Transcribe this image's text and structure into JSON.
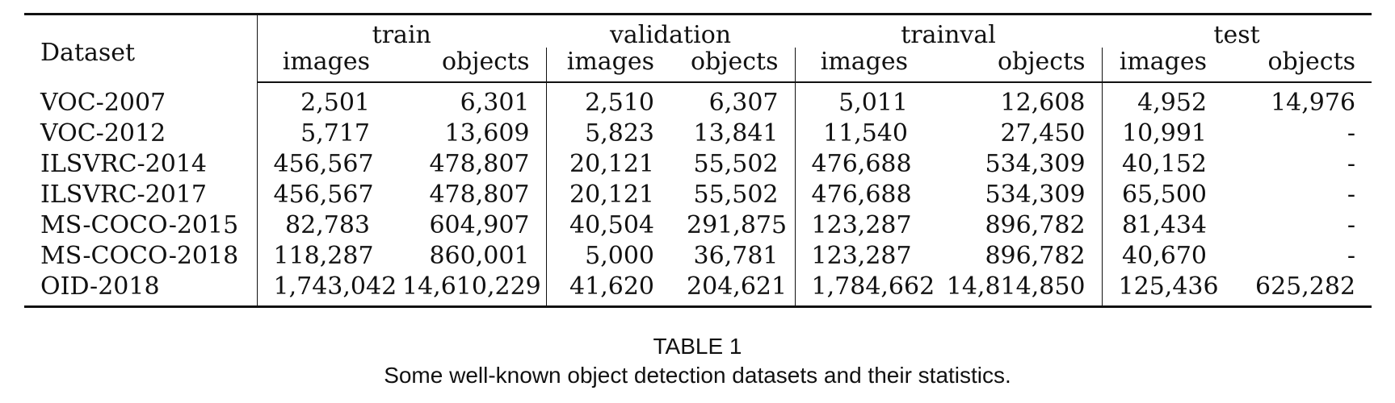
{
  "table": {
    "dataset_header": "Dataset",
    "groups": [
      "train",
      "validation",
      "trainval",
      "test"
    ],
    "subheaders": [
      "images",
      "objects",
      "images",
      "objects",
      "images",
      "objects",
      "images",
      "objects"
    ],
    "rows": [
      {
        "name": "VOC-2007",
        "cells": [
          "2,501",
          "6,301",
          "2,510",
          "6,307",
          "5,011",
          "12,608",
          "4,952",
          "14,976"
        ]
      },
      {
        "name": "VOC-2012",
        "cells": [
          "5,717",
          "13,609",
          "5,823",
          "13,841",
          "11,540",
          "27,450",
          "10,991",
          "-"
        ]
      },
      {
        "name": "ILSVRC-2014",
        "cells": [
          "456,567",
          "478,807",
          "20,121",
          "55,502",
          "476,688",
          "534,309",
          "40,152",
          "-"
        ]
      },
      {
        "name": "ILSVRC-2017",
        "cells": [
          "456,567",
          "478,807",
          "20,121",
          "55,502",
          "476,688",
          "534,309",
          "65,500",
          "-"
        ]
      },
      {
        "name": "MS-COCO-2015",
        "cells": [
          "82,783",
          "604,907",
          "40,504",
          "291,875",
          "123,287",
          "896,782",
          "81,434",
          "-"
        ]
      },
      {
        "name": "MS-COCO-2018",
        "cells": [
          "118,287",
          "860,001",
          "5,000",
          "36,781",
          "123,287",
          "896,782",
          "40,670",
          "-"
        ]
      },
      {
        "name": "OID-2018",
        "cells": [
          "1,743,042",
          "14,610,229",
          "41,620",
          "204,621",
          "1,784,662",
          "14,814,850",
          "125,436",
          "625,282"
        ]
      }
    ]
  },
  "caption": {
    "label": "TABLE 1",
    "text": "Some well-known object detection datasets and their statistics."
  }
}
